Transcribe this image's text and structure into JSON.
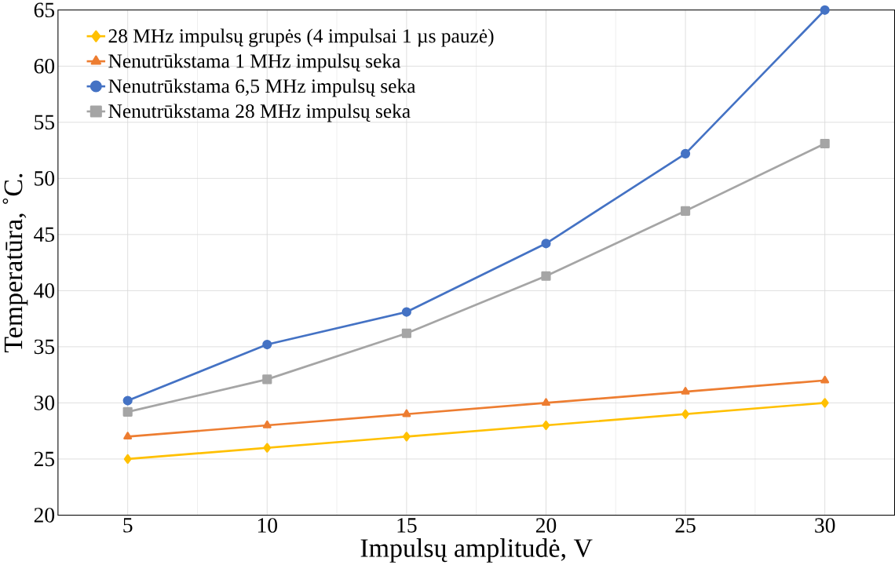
{
  "chart_data": {
    "type": "line",
    "xlabel": "Impulsų amplitudė, V",
    "ylabel": "Temperatūra, ˚C.",
    "x": [
      5,
      10,
      15,
      20,
      25,
      30
    ],
    "series": [
      {
        "name": "28 MHz impulsų grupės (4 impulsai 1 µs pauzė)",
        "color": "#ffc000",
        "marker": "diamond",
        "values": [
          25,
          26,
          27,
          28,
          29,
          30
        ]
      },
      {
        "name": "Nenutrūkstama 1 MHz impulsų seka",
        "color": "#ed7d31",
        "marker": "triangle",
        "values": [
          27,
          28,
          29,
          30,
          31,
          32
        ]
      },
      {
        "name": "Nenutrūkstama 6,5 MHz impulsų seka",
        "color": "#4472c4",
        "marker": "circle",
        "values": [
          30.2,
          35.2,
          38.1,
          44.2,
          52.2,
          65
        ]
      },
      {
        "name": "Nenutrūkstama 28 MHz impulsų seka",
        "color": "#a5a5a5",
        "marker": "square",
        "values": [
          29.2,
          32.1,
          36.2,
          41.3,
          47.1,
          53.1
        ]
      }
    ],
    "xlim": [
      2.5,
      32.5
    ],
    "ylim": [
      20,
      65
    ],
    "xticks": [
      5,
      10,
      15,
      20,
      25,
      30
    ],
    "yticks": [
      20,
      25,
      30,
      35,
      40,
      45,
      50,
      55,
      60,
      65
    ],
    "grid": true,
    "legend": "top left",
    "line_style": "solid"
  }
}
